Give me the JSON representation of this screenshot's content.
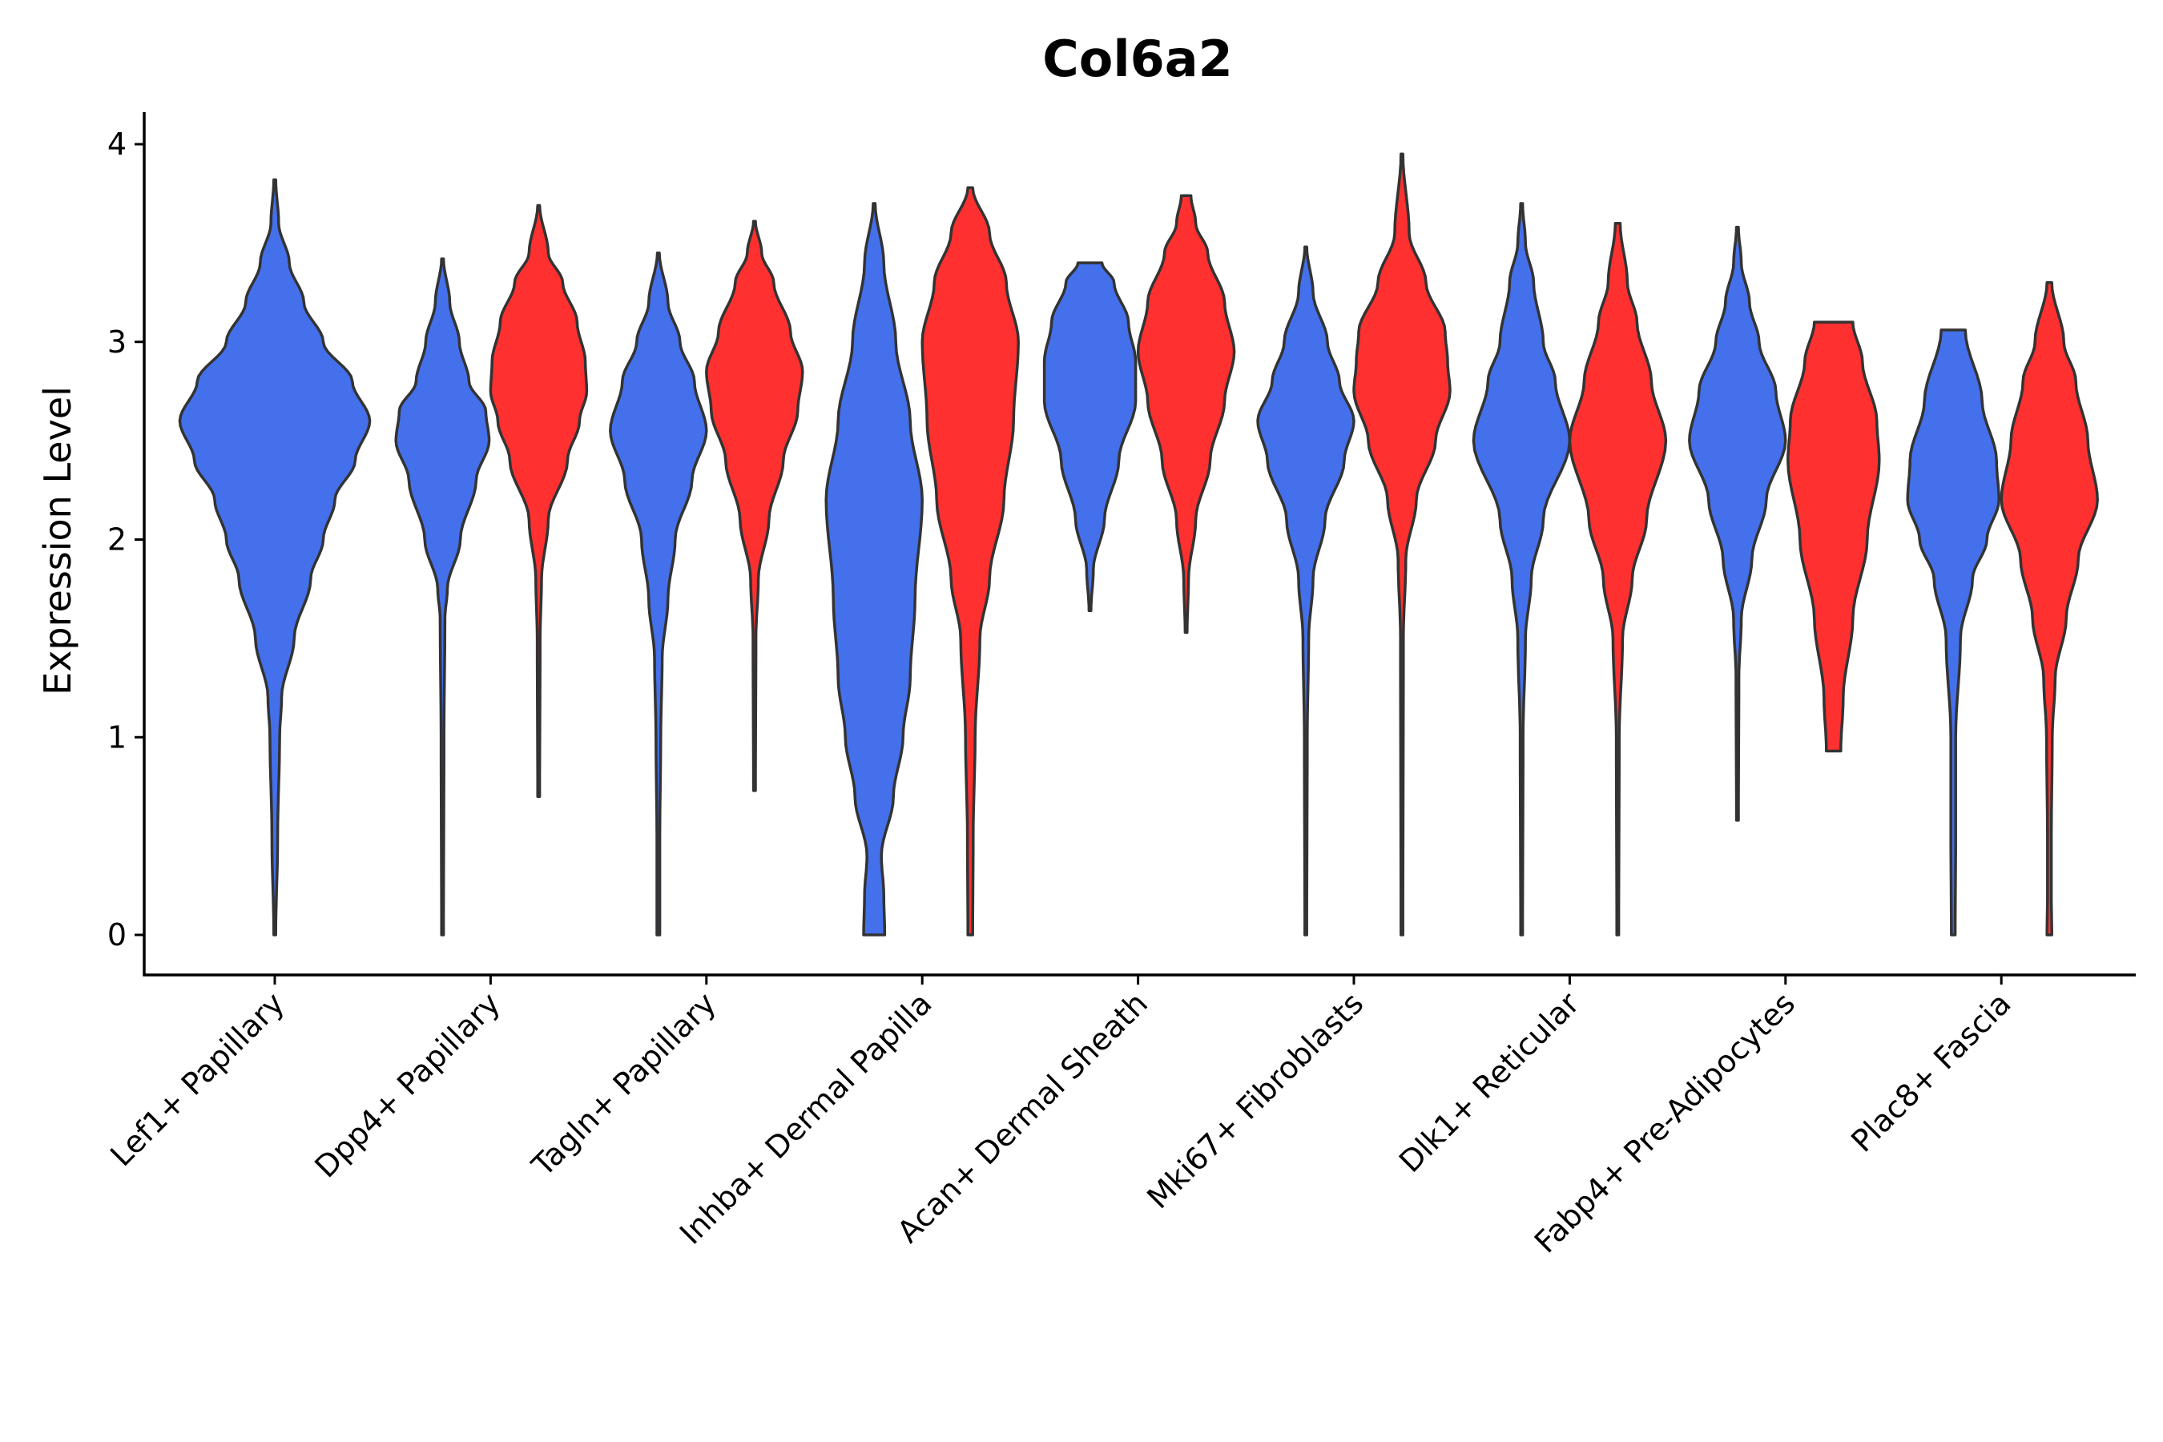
{
  "chart_data": {
    "type": "violin",
    "title": "Col6a2",
    "xlabel": "",
    "ylabel": "Expression Level",
    "ylim": [
      -0.2,
      4.15
    ],
    "yticks": [
      0,
      1,
      2,
      3,
      4
    ],
    "grid": false,
    "legend": "none",
    "categories": [
      "Lef1+ Papillary",
      "Dpp4+ Papillary",
      "Tagln+ Papillary",
      "Inhba+ Dermal Papilla",
      "Acan+ Dermal Sheath",
      "Mki67+ Fibroblasts",
      "Dlk1+ Reticular",
      "Fabp4+ Pre-Adipocytes",
      "Plac8+ Fascia"
    ],
    "group_colors": {
      "A": "#4470EC",
      "B": "#FF3030"
    },
    "outline_color": "#333333",
    "violins": [
      {
        "category": 0,
        "group": "A",
        "solo": true,
        "min": 0,
        "max": 3.82,
        "density": [
          [
            0,
            0.01
          ],
          [
            0.5,
            0.03
          ],
          [
            1,
            0.05
          ],
          [
            1.2,
            0.07
          ],
          [
            1.5,
            0.2
          ],
          [
            1.8,
            0.37
          ],
          [
            2.0,
            0.5
          ],
          [
            2.2,
            0.62
          ],
          [
            2.4,
            0.83
          ],
          [
            2.6,
            0.98
          ],
          [
            2.8,
            0.8
          ],
          [
            3.0,
            0.5
          ],
          [
            3.2,
            0.3
          ],
          [
            3.4,
            0.15
          ],
          [
            3.6,
            0.04
          ],
          [
            3.82,
            0.01
          ]
        ]
      },
      {
        "category": 1,
        "group": "A",
        "min": 0,
        "max": 3.42,
        "density": [
          [
            0,
            0.02
          ],
          [
            1,
            0.03
          ],
          [
            1.6,
            0.05
          ],
          [
            1.75,
            0.1
          ],
          [
            2.0,
            0.37
          ],
          [
            2.3,
            0.7
          ],
          [
            2.5,
            0.97
          ],
          [
            2.65,
            0.9
          ],
          [
            2.8,
            0.55
          ],
          [
            3.0,
            0.35
          ],
          [
            3.2,
            0.15
          ],
          [
            3.42,
            0.02
          ]
        ]
      },
      {
        "category": 1,
        "group": "B",
        "min": 0.7,
        "max": 3.69,
        "density": [
          [
            0.7,
            0.02
          ],
          [
            1.5,
            0.03
          ],
          [
            1.8,
            0.06
          ],
          [
            2.1,
            0.2
          ],
          [
            2.4,
            0.6
          ],
          [
            2.6,
            0.85
          ],
          [
            2.75,
            1.0
          ],
          [
            2.9,
            0.97
          ],
          [
            3.1,
            0.8
          ],
          [
            3.3,
            0.5
          ],
          [
            3.45,
            0.2
          ],
          [
            3.69,
            0.02
          ]
        ]
      },
      {
        "category": 2,
        "group": "A",
        "min": 0,
        "max": 3.45,
        "density": [
          [
            0,
            0.03
          ],
          [
            0.5,
            0.03
          ],
          [
            1.0,
            0.05
          ],
          [
            1.4,
            0.08
          ],
          [
            1.7,
            0.2
          ],
          [
            2.0,
            0.35
          ],
          [
            2.3,
            0.7
          ],
          [
            2.55,
            1.0
          ],
          [
            2.8,
            0.75
          ],
          [
            3.0,
            0.45
          ],
          [
            3.2,
            0.2
          ],
          [
            3.45,
            0.02
          ]
        ]
      },
      {
        "category": 2,
        "group": "B",
        "min": 0.73,
        "max": 3.61,
        "density": [
          [
            0.73,
            0.02
          ],
          [
            1.5,
            0.03
          ],
          [
            1.8,
            0.08
          ],
          [
            2.1,
            0.3
          ],
          [
            2.4,
            0.6
          ],
          [
            2.65,
            0.9
          ],
          [
            2.85,
            1.0
          ],
          [
            3.05,
            0.75
          ],
          [
            3.3,
            0.4
          ],
          [
            3.45,
            0.15
          ],
          [
            3.61,
            0.02
          ]
        ]
      },
      {
        "category": 3,
        "group": "A",
        "min": 0,
        "max": 3.7,
        "density": [
          [
            0,
            0.22
          ],
          [
            0.2,
            0.2
          ],
          [
            0.4,
            0.15
          ],
          [
            0.7,
            0.4
          ],
          [
            1.0,
            0.6
          ],
          [
            1.3,
            0.75
          ],
          [
            1.7,
            0.85
          ],
          [
            2.2,
            1.0
          ],
          [
            2.6,
            0.75
          ],
          [
            3.0,
            0.45
          ],
          [
            3.4,
            0.2
          ],
          [
            3.7,
            0.02
          ]
        ]
      },
      {
        "category": 3,
        "group": "B",
        "min": 0,
        "max": 3.78,
        "density": [
          [
            0,
            0.05
          ],
          [
            0.5,
            0.06
          ],
          [
            1.0,
            0.1
          ],
          [
            1.5,
            0.2
          ],
          [
            1.8,
            0.4
          ],
          [
            2.2,
            0.7
          ],
          [
            2.6,
            0.9
          ],
          [
            3.0,
            1.0
          ],
          [
            3.3,
            0.75
          ],
          [
            3.55,
            0.4
          ],
          [
            3.78,
            0.05
          ]
        ]
      },
      {
        "category": 4,
        "group": "A",
        "min": 1.64,
        "max": 3.4,
        "density": [
          [
            1.64,
            0.02
          ],
          [
            1.85,
            0.07
          ],
          [
            2.1,
            0.3
          ],
          [
            2.4,
            0.6
          ],
          [
            2.7,
            0.95
          ],
          [
            2.9,
            0.95
          ],
          [
            3.1,
            0.8
          ],
          [
            3.3,
            0.5
          ],
          [
            3.4,
            0.25
          ]
        ]
      },
      {
        "category": 4,
        "group": "B",
        "min": 1.53,
        "max": 3.74,
        "density": [
          [
            1.53,
            0.02
          ],
          [
            1.8,
            0.05
          ],
          [
            2.1,
            0.2
          ],
          [
            2.4,
            0.5
          ],
          [
            2.7,
            0.8
          ],
          [
            2.95,
            1.0
          ],
          [
            3.2,
            0.8
          ],
          [
            3.45,
            0.45
          ],
          [
            3.6,
            0.2
          ],
          [
            3.74,
            0.1
          ]
        ]
      },
      {
        "category": 5,
        "group": "A",
        "min": 0,
        "max": 3.48,
        "density": [
          [
            0,
            0.02
          ],
          [
            1.0,
            0.03
          ],
          [
            1.5,
            0.06
          ],
          [
            1.8,
            0.15
          ],
          [
            2.1,
            0.4
          ],
          [
            2.4,
            0.8
          ],
          [
            2.6,
            1.0
          ],
          [
            2.8,
            0.7
          ],
          [
            3.0,
            0.45
          ],
          [
            3.25,
            0.15
          ],
          [
            3.48,
            0.02
          ]
        ]
      },
      {
        "category": 5,
        "group": "B",
        "min": 0,
        "max": 3.95,
        "density": [
          [
            0,
            0.02
          ],
          [
            1.5,
            0.03
          ],
          [
            1.9,
            0.08
          ],
          [
            2.2,
            0.3
          ],
          [
            2.5,
            0.7
          ],
          [
            2.75,
            1.0
          ],
          [
            2.9,
            0.95
          ],
          [
            3.05,
            0.9
          ],
          [
            3.3,
            0.5
          ],
          [
            3.55,
            0.15
          ],
          [
            3.95,
            0.02
          ]
        ]
      },
      {
        "category": 6,
        "group": "A",
        "min": 0,
        "max": 3.7,
        "density": [
          [
            0,
            0.02
          ],
          [
            1.0,
            0.03
          ],
          [
            1.5,
            0.08
          ],
          [
            1.8,
            0.2
          ],
          [
            2.1,
            0.45
          ],
          [
            2.5,
            1.0
          ],
          [
            2.8,
            0.7
          ],
          [
            3.0,
            0.45
          ],
          [
            3.3,
            0.25
          ],
          [
            3.5,
            0.08
          ],
          [
            3.7,
            0.02
          ]
        ]
      },
      {
        "category": 6,
        "group": "B",
        "min": 0,
        "max": 3.6,
        "density": [
          [
            0,
            0.02
          ],
          [
            1.0,
            0.03
          ],
          [
            1.5,
            0.1
          ],
          [
            1.8,
            0.3
          ],
          [
            2.1,
            0.6
          ],
          [
            2.5,
            1.0
          ],
          [
            2.8,
            0.7
          ],
          [
            3.1,
            0.4
          ],
          [
            3.3,
            0.2
          ],
          [
            3.6,
            0.05
          ]
        ]
      },
      {
        "category": 7,
        "group": "A",
        "min": 0.58,
        "max": 3.58,
        "density": [
          [
            0.58,
            0.02
          ],
          [
            1.3,
            0.03
          ],
          [
            1.6,
            0.08
          ],
          [
            1.9,
            0.3
          ],
          [
            2.2,
            0.6
          ],
          [
            2.5,
            1.0
          ],
          [
            2.75,
            0.8
          ],
          [
            3.0,
            0.45
          ],
          [
            3.2,
            0.25
          ],
          [
            3.4,
            0.08
          ],
          [
            3.58,
            0.02
          ]
        ]
      },
      {
        "category": 7,
        "group": "B",
        "min": 0.93,
        "max": 3.1,
        "density": [
          [
            0.93,
            0.15
          ],
          [
            1.2,
            0.2
          ],
          [
            1.6,
            0.4
          ],
          [
            2.0,
            0.7
          ],
          [
            2.4,
            0.95
          ],
          [
            2.6,
            0.9
          ],
          [
            2.9,
            0.6
          ],
          [
            3.1,
            0.4
          ]
        ]
      },
      {
        "category": 8,
        "group": "A",
        "min": 0,
        "max": 3.06,
        "density": [
          [
            0,
            0.04
          ],
          [
            0.5,
            0.05
          ],
          [
            1.0,
            0.05
          ],
          [
            1.5,
            0.15
          ],
          [
            1.8,
            0.4
          ],
          [
            2.0,
            0.7
          ],
          [
            2.2,
            0.95
          ],
          [
            2.4,
            0.9
          ],
          [
            2.7,
            0.6
          ],
          [
            3.06,
            0.25
          ]
        ]
      },
      {
        "category": 8,
        "group": "B",
        "min": 0,
        "max": 3.3,
        "density": [
          [
            0,
            0.05
          ],
          [
            0.2,
            0.04
          ],
          [
            0.5,
            0.04
          ],
          [
            1.0,
            0.06
          ],
          [
            1.3,
            0.12
          ],
          [
            1.6,
            0.35
          ],
          [
            1.9,
            0.6
          ],
          [
            2.2,
            1.0
          ],
          [
            2.5,
            0.8
          ],
          [
            2.8,
            0.55
          ],
          [
            3.0,
            0.3
          ],
          [
            3.3,
            0.05
          ]
        ]
      }
    ]
  }
}
